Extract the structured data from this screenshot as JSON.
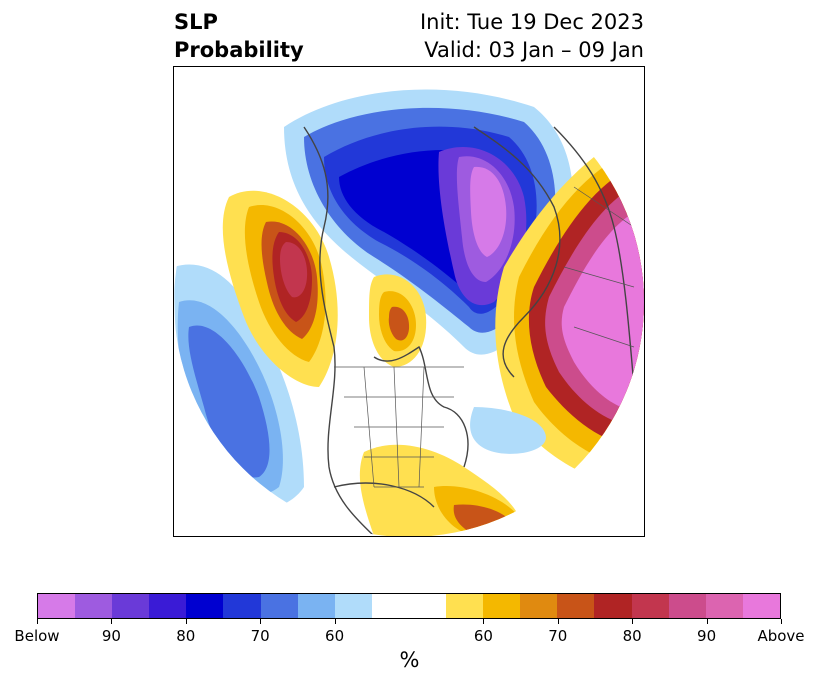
{
  "header": {
    "title_line1": "SLP",
    "title_line2": "Probability",
    "init": "Init: Tue 19 Dec 2023",
    "valid": "Valid: 03 Jan – 09 Jan"
  },
  "colorbar": {
    "colors": [
      "#d67ae8",
      "#9e5be0",
      "#6a3ad8",
      "#3a1bd6",
      "#0000d0",
      "#2238d8",
      "#4a72e2",
      "#7ab3f2",
      "#b0dcfa",
      "#ffffff",
      "#ffffff",
      "#ffe050",
      "#f4b800",
      "#e08a10",
      "#c85418",
      "#b02424",
      "#c2364e",
      "#cc4c8c",
      "#dc64b0",
      "#e878dc"
    ],
    "tick_labels": [
      "Below",
      "90",
      "80",
      "70",
      "60",
      "60",
      "70",
      "80",
      "90",
      "Above"
    ],
    "unit": "%"
  },
  "map": {
    "type": "polar-stereographic",
    "variable": "Sea Level Pressure probability",
    "icon": "north-polar-map-icon"
  }
}
